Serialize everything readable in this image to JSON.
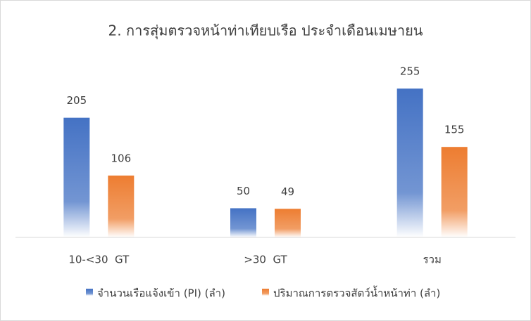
{
  "chart_data": {
    "type": "bar",
    "title": "2. การสุ่มตรวจหน้าท่าเทียบเรือ ประจำเดือนเมษายน",
    "categories": [
      "10-<30  GT",
      ">30  GT",
      "รวม"
    ],
    "series": [
      {
        "name": "จำนวนเรือแจ้งเข้า (PI) (ลำ)",
        "color": "#4472c4",
        "values": [
          205,
          50,
          255
        ]
      },
      {
        "name": "ปริมาณการตรวจสัตว์น้ำหน้าท่า (ลำ)",
        "color": "#ed7d31",
        "values": [
          106,
          49,
          155
        ]
      }
    ]
  }
}
